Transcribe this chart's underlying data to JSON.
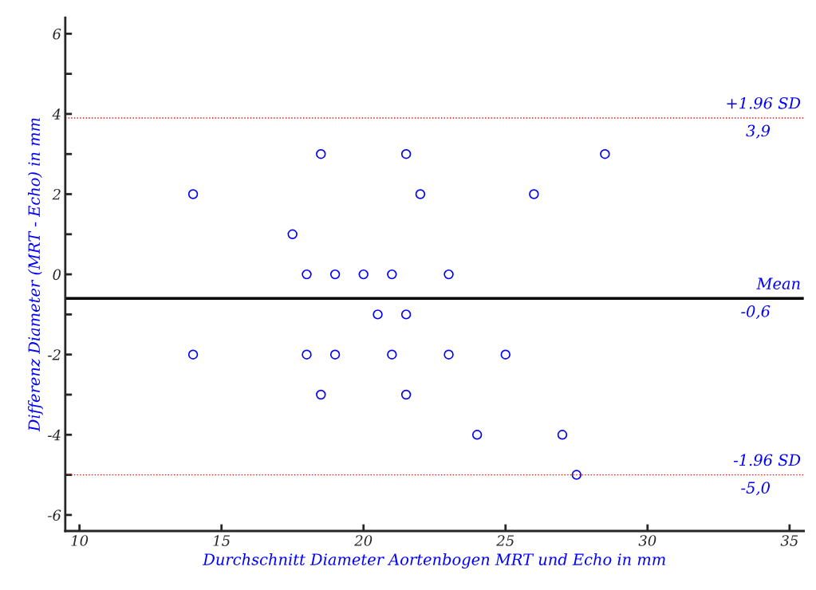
{
  "chart_data": {
    "type": "scatter",
    "xlabel": "Durchschnitt Diameter Aortenbogen MRT und Echo in mm",
    "ylabel": "Differenz Diameter (MRT - Echo) in mm",
    "series": [
      {
        "color": "#0000ff",
        "marker": "circle",
        "x": [
          14,
          14,
          17.5,
          18,
          18,
          18.5,
          18.5,
          19,
          19,
          20,
          20.5,
          21,
          21,
          21.5,
          21.5,
          21.5,
          22,
          23,
          23,
          24,
          25,
          26,
          27,
          27.5,
          28.5
        ],
        "values": [
          2,
          -2,
          1,
          0,
          -2,
          3,
          -3,
          0,
          -2,
          0,
          -1,
          0,
          -2,
          3,
          -1,
          -3,
          2,
          0,
          -2,
          -4,
          -2,
          2,
          -4,
          -5,
          3
        ]
      }
    ],
    "xlim": [
      9.5,
      35.5
    ],
    "ylim": [
      -6.4,
      6.4
    ],
    "xticks": [
      10,
      15,
      20,
      25,
      30,
      35
    ],
    "yticks": [
      -6,
      {
        "value": -5,
        "label": null
      },
      -4,
      {
        "value": -3,
        "label": null
      },
      -2,
      {
        "value": -1,
        "label": null
      },
      0,
      {
        "value": 1,
        "label": null
      },
      2,
      {
        "value": 3,
        "label": null
      },
      4,
      {
        "value": 5,
        "label": null
      },
      6
    ],
    "ref_lines": [
      {
        "axis": "y",
        "value": 3.9,
        "label": "+1.96 SD",
        "color": "#ff0000",
        "line_style": "dotted"
      },
      {
        "axis": "y",
        "value": -0.6,
        "label": "Mean",
        "color": "#000000",
        "line_style": "solid"
      },
      {
        "axis": "y",
        "value": -5.0,
        "label": "-1.96 SD",
        "color": "#ff0000",
        "line_style": "dotted"
      }
    ],
    "annotations": [
      "3,9",
      "-0,6",
      "-5,0"
    ],
    "grid": false,
    "legend": false
  }
}
